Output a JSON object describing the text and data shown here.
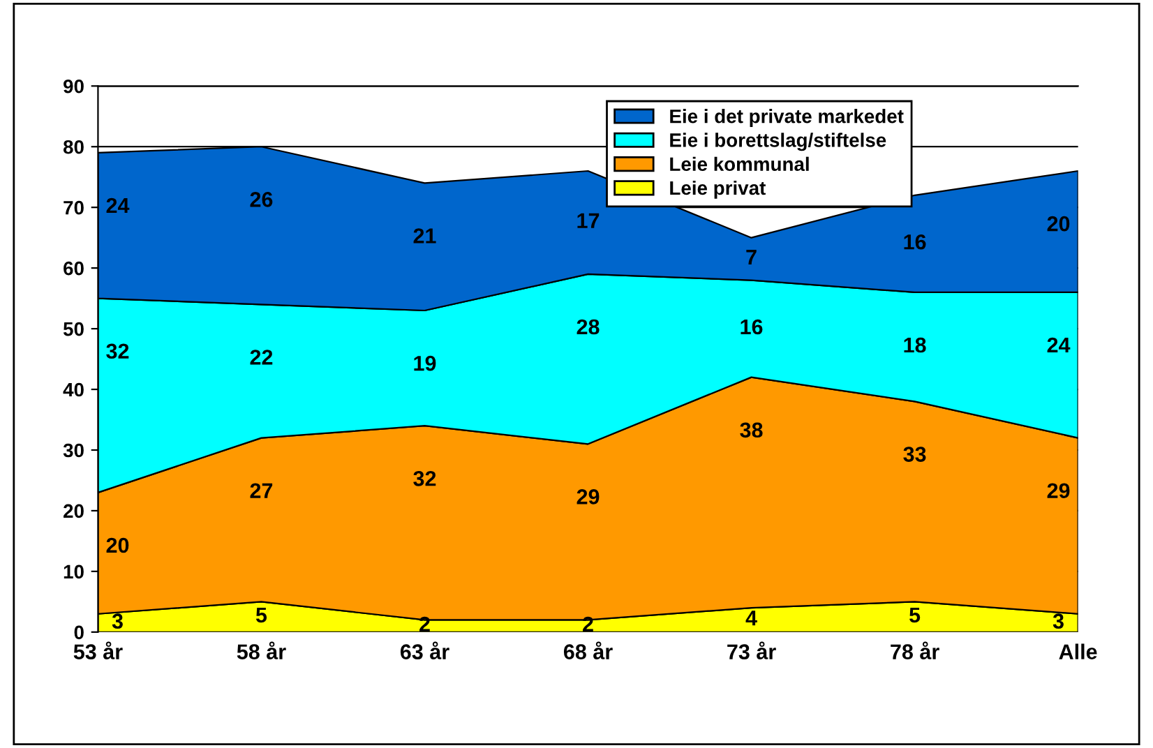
{
  "chart_data": {
    "type": "area",
    "stacked": true,
    "categories": [
      "53 år",
      "58 år",
      "63 år",
      "68 år",
      "73 år",
      "78 år",
      "Alle"
    ],
    "series": [
      {
        "name": "Leie privat",
        "color": "#ffff00",
        "values": [
          3,
          5,
          2,
          2,
          4,
          5,
          3
        ]
      },
      {
        "name": "Leie kommunal",
        "color": "#ff9900",
        "values": [
          20,
          27,
          32,
          29,
          38,
          33,
          29
        ]
      },
      {
        "name": "Eie i borettslag/stiftelse",
        "color": "#00ffff",
        "values": [
          32,
          22,
          19,
          28,
          16,
          18,
          24
        ]
      },
      {
        "name": "Eie i det private markedet",
        "color": "#0066cc",
        "values": [
          24,
          26,
          21,
          17,
          7,
          16,
          20
        ]
      }
    ],
    "ylim": [
      0,
      90
    ],
    "yticks": [
      0,
      10,
      20,
      30,
      40,
      50,
      60,
      70,
      80,
      90
    ],
    "grid": "y",
    "legend": "top right",
    "data_labels": true
  }
}
